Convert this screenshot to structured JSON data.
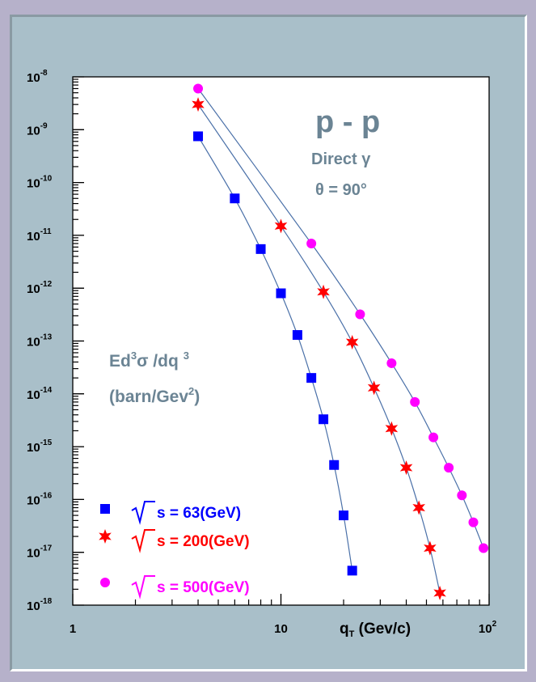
{
  "chart_data": {
    "type": "scatter",
    "log_x": true,
    "log_y": true,
    "xlim": [
      1,
      100
    ],
    "ylim": [
      1e-18,
      1e-08
    ],
    "x_tick_labels": [
      "1",
      "10",
      "10"
    ],
    "x_tick_sup": [
      "",
      "",
      "2"
    ],
    "y_tick_base": "10",
    "y_tick_exponents": [
      "-8",
      "-9",
      "-10",
      "-11",
      "-12",
      "-13",
      "-14",
      "-15",
      "-16",
      "-17",
      "-18"
    ],
    "xlabel_main": "q",
    "xlabel_sub": "T",
    "xlabel_unit": " (Gev/c)",
    "title": "p - p",
    "subtitle1": "Direct  γ",
    "subtitle2": "θ = 90°",
    "ylabel_line1_a": "Ed",
    "ylabel_line1_sup": "3",
    "ylabel_line1_b": "σ /dq",
    "ylabel_line1_sup2": "3",
    "ylabel_line2_a": "(barn/Gev",
    "ylabel_line2_sup": "2",
    "ylabel_line2_b": ")",
    "legend_position": "bottom-left",
    "series": [
      {
        "name": "√s = 63(GeV)",
        "label": "s = 63(GeV)",
        "marker": "square",
        "color": "#0000ff",
        "x": [
          4,
          6,
          8,
          10,
          12,
          14,
          16,
          18,
          20,
          22
        ],
        "y": [
          7.5e-10,
          5e-11,
          5.5e-12,
          8e-13,
          1.3e-13,
          2e-14,
          3.3e-15,
          4.5e-16,
          5e-17,
          4.5e-18
        ]
      },
      {
        "name": "√s = 200(GeV)",
        "label": "s = 200(GeV)",
        "marker": "star",
        "color": "#ff0000",
        "x": [
          4,
          10,
          16,
          22,
          28,
          34,
          40,
          46,
          52,
          58
        ],
        "y": [
          3e-09,
          1.5e-11,
          8.5e-13,
          9.5e-14,
          1.3e-14,
          2.2e-15,
          4e-16,
          7e-17,
          1.2e-17,
          1.7e-18
        ]
      },
      {
        "name": "√s = 500(GeV)",
        "label": "s = 500(GeV)",
        "marker": "circle",
        "color": "#ff00ff",
        "x": [
          4,
          14,
          24,
          34,
          44,
          54,
          64,
          74,
          84,
          94
        ],
        "y": [
          6e-09,
          7e-12,
          3.2e-13,
          3.8e-14,
          7e-15,
          1.5e-15,
          4e-16,
          1.2e-16,
          3.7e-17,
          1.2e-17
        ]
      }
    ]
  },
  "colors": {
    "page_background": "#b6b1ca",
    "frame_background": "#a9bfc9",
    "plot_background": "#ffffff",
    "fit_line": "#4a70a8",
    "annotation": "#6b8494"
  }
}
